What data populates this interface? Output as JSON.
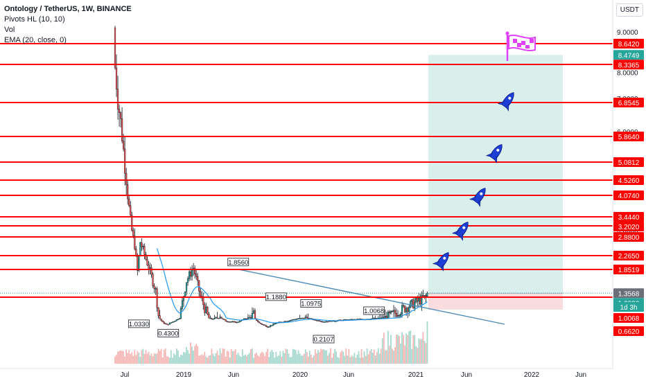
{
  "legend": {
    "title": "Ontology / TetherUS, 1W, BINANCE",
    "line2": "Pivots HL (10, 10)",
    "line3": "Vol",
    "line4": "EMA (20, close, 0)"
  },
  "currency": "USDT",
  "colors": {
    "up": "#26a69a",
    "down": "#ef5350",
    "candle": "#131722",
    "level": "#ff0000",
    "ema": "#2196f3",
    "trend": "#4a8ab8",
    "target_zone": "#d9efec",
    "stop_zone": "#f9dcde",
    "green_tag": "#26a69a",
    "grey_tag": "#6b6f7a",
    "rocket": "#1e3fd6",
    "flag": "#e040fb"
  },
  "chart_data": {
    "type": "candlestick",
    "x_ticks": [
      "Jul",
      "2019",
      "Jun",
      "2020",
      "Jun",
      "2021",
      "Jun",
      "2022",
      "Jun"
    ],
    "y_ticks": [
      9.0,
      8.0,
      7.0,
      6.0,
      3.0
    ],
    "y_scale": "log",
    "horizontal_levels": [
      8.642,
      8.3365,
      6.8545,
      5.864,
      5.0812,
      4.526,
      4.074,
      3.444,
      3.202,
      2.88,
      2.265,
      1.8519,
      1.288
    ],
    "price_tags": [
      {
        "value": 8.642,
        "label": "8.6420",
        "kind": "red"
      },
      {
        "value": 8.4749,
        "label": "8.4749",
        "kind": "green"
      },
      {
        "value": 8.3365,
        "label": "8.3365",
        "kind": "red"
      },
      {
        "value": 6.8545,
        "label": "6.8545",
        "kind": "red"
      },
      {
        "value": 5.864,
        "label": "5.8640",
        "kind": "red"
      },
      {
        "value": 5.0812,
        "label": "5.0812",
        "kind": "red"
      },
      {
        "value": 4.526,
        "label": "4.5260",
        "kind": "red"
      },
      {
        "value": 4.074,
        "label": "4.0740",
        "kind": "red"
      },
      {
        "value": 3.444,
        "label": "3.4440",
        "kind": "red"
      },
      {
        "value": 3.202,
        "label": "3.2020",
        "kind": "red"
      },
      {
        "value": 2.88,
        "label": "2.8800",
        "kind": "red"
      },
      {
        "value": 2.265,
        "label": "2.2650",
        "kind": "red"
      },
      {
        "value": 1.8519,
        "label": "1.8519",
        "kind": "red"
      },
      {
        "value": 1.3568,
        "label": "1.3568",
        "kind": "grey"
      },
      {
        "value": 1.288,
        "label": "1.2880",
        "kind": "green"
      },
      {
        "value": 1.0068,
        "label": "1.0068",
        "kind": "red"
      },
      {
        "value": 0.662,
        "label": "0.6620",
        "kind": "red"
      }
    ],
    "countdown": "1d 3h",
    "pivots": [
      {
        "label": "1.0330",
        "value": 1.033,
        "dir": "low"
      },
      {
        "label": "0.4300",
        "value": 0.43,
        "dir": "low"
      },
      {
        "label": "1.8560",
        "value": 1.856,
        "dir": "high"
      },
      {
        "label": "1.1880",
        "value": 1.188,
        "dir": "high"
      },
      {
        "label": "1.0975",
        "value": 1.0975,
        "dir": "high"
      },
      {
        "label": "0.2107",
        "value": 0.2107,
        "dir": "low"
      },
      {
        "label": "1.0068",
        "value": 1.0068,
        "dir": "high"
      }
    ],
    "position": {
      "entry": 1.3568,
      "target": 8.4749,
      "stop": 1.0068
    },
    "last_price": 1.3568,
    "all_time_high": 9.9,
    "icons": [
      "rocket-icon",
      "rocket-icon",
      "rocket-icon",
      "rocket-icon",
      "rocket-icon",
      "flag-icon"
    ]
  }
}
